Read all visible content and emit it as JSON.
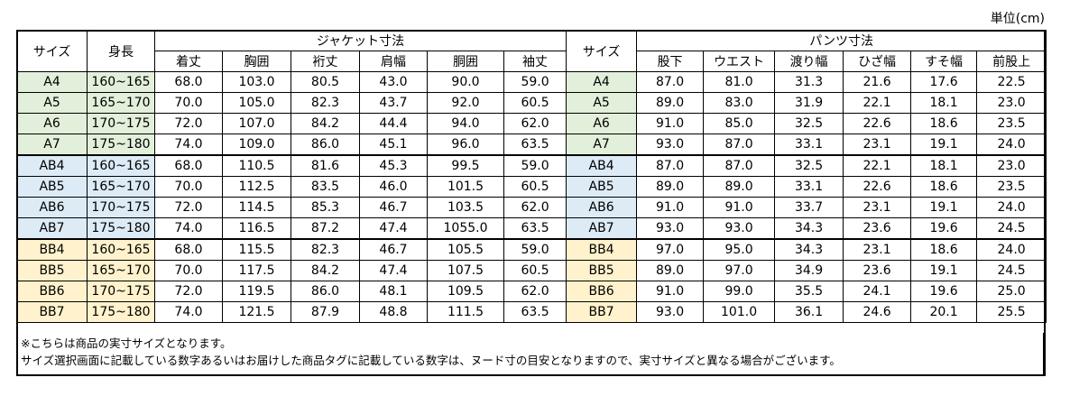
{
  "unit_label": "単位(cm)",
  "headers": {
    "size": "サイズ",
    "height": "身長",
    "jacket_group": "ジャケット寸法",
    "jacket_cols": [
      "着丈",
      "胸囲",
      "裄丈",
      "肩幅",
      "胴囲",
      "袖丈"
    ],
    "size2": "サイズ",
    "pants_group": "パンツ寸法",
    "pants_cols": [
      "股下",
      "ウエスト",
      "渡り幅",
      "ひざ幅",
      "すそ幅",
      "前股上"
    ]
  },
  "rows": [
    {
      "size": "A4",
      "height": "160~165",
      "group": "a",
      "jacket": [
        "68.0",
        "103.0",
        "80.5",
        "43.0",
        "90.0",
        "59.0"
      ],
      "pants": [
        "87.0",
        "81.0",
        "31.3",
        "21.6",
        "17.6",
        "22.5"
      ]
    },
    {
      "size": "A5",
      "height": "165~170",
      "group": "a",
      "jacket": [
        "70.0",
        "105.0",
        "82.3",
        "43.7",
        "92.0",
        "60.5"
      ],
      "pants": [
        "89.0",
        "83.0",
        "31.9",
        "22.1",
        "18.1",
        "23.0"
      ]
    },
    {
      "size": "A6",
      "height": "170~175",
      "group": "a",
      "jacket": [
        "72.0",
        "107.0",
        "84.2",
        "44.4",
        "94.0",
        "62.0"
      ],
      "pants": [
        "91.0",
        "85.0",
        "32.5",
        "22.6",
        "18.6",
        "23.5"
      ]
    },
    {
      "size": "A7",
      "height": "175~180",
      "group": "a",
      "jacket": [
        "74.0",
        "109.0",
        "86.0",
        "45.1",
        "96.0",
        "63.5"
      ],
      "pants": [
        "93.0",
        "87.0",
        "33.1",
        "23.1",
        "19.1",
        "24.0"
      ]
    },
    {
      "size": "AB4",
      "height": "160~165",
      "group": "ab",
      "jacket": [
        "68.0",
        "110.5",
        "81.6",
        "45.3",
        "99.5",
        "59.0"
      ],
      "pants": [
        "87.0",
        "87.0",
        "32.5",
        "22.1",
        "18.1",
        "23.0"
      ]
    },
    {
      "size": "AB5",
      "height": "165~170",
      "group": "ab",
      "jacket": [
        "70.0",
        "112.5",
        "83.5",
        "46.0",
        "101.5",
        "60.5"
      ],
      "pants": [
        "89.0",
        "89.0",
        "33.1",
        "22.6",
        "18.6",
        "23.5"
      ]
    },
    {
      "size": "AB6",
      "height": "170~175",
      "group": "ab",
      "jacket": [
        "72.0",
        "114.5",
        "85.3",
        "46.7",
        "103.5",
        "62.0"
      ],
      "pants": [
        "91.0",
        "91.0",
        "33.7",
        "23.1",
        "19.1",
        "24.0"
      ]
    },
    {
      "size": "AB7",
      "height": "175~180",
      "group": "ab",
      "jacket": [
        "74.0",
        "116.5",
        "87.2",
        "47.4",
        "1055.0",
        "63.5"
      ],
      "pants": [
        "93.0",
        "93.0",
        "34.3",
        "23.6",
        "19.6",
        "24.5"
      ]
    },
    {
      "size": "BB4",
      "height": "160~165",
      "group": "bb",
      "jacket": [
        "68.0",
        "115.5",
        "82.3",
        "46.7",
        "105.5",
        "59.0"
      ],
      "pants": [
        "97.0",
        "95.0",
        "34.3",
        "23.1",
        "18.6",
        "24.0"
      ]
    },
    {
      "size": "BB5",
      "height": "165~170",
      "group": "bb",
      "jacket": [
        "70.0",
        "117.5",
        "84.2",
        "47.4",
        "107.5",
        "60.5"
      ],
      "pants": [
        "89.0",
        "97.0",
        "34.9",
        "23.6",
        "19.1",
        "24.5"
      ]
    },
    {
      "size": "BB6",
      "height": "170~175",
      "group": "bb",
      "jacket": [
        "72.0",
        "119.5",
        "86.0",
        "48.1",
        "109.5",
        "62.0"
      ],
      "pants": [
        "91.0",
        "99.0",
        "35.5",
        "24.1",
        "19.6",
        "25.0"
      ]
    },
    {
      "size": "BB7",
      "height": "175~180",
      "group": "bb",
      "jacket": [
        "74.0",
        "121.5",
        "87.9",
        "48.8",
        "111.5",
        "63.5"
      ],
      "pants": [
        "93.0",
        "101.0",
        "36.1",
        "24.6",
        "20.1",
        "25.5"
      ]
    }
  ],
  "notes": {
    "line1": "※こちらは商品の実寸サイズとなります。",
    "line2": "サイズ選択画面に記載している数字あるいはお届けした商品タグに記載している数字は、ヌード寸の目安となりますので、実寸サイズと異なる場合がございます。"
  },
  "colors": {
    "a": "#e2efda",
    "ab": "#ddebf7",
    "bb": "#fff2cc"
  }
}
